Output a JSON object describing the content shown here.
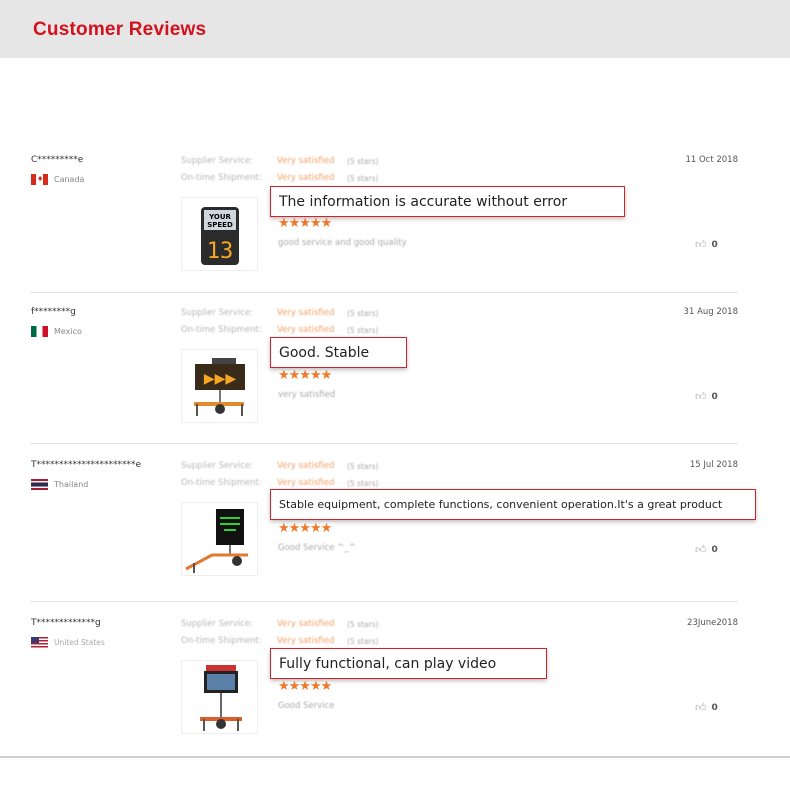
{
  "header": {
    "title": "Customer Reviews"
  },
  "labels": {
    "supplier": "Supplier Service:",
    "shipment": "On-time Shipment:"
  },
  "colors": {
    "accent": "#d2121f",
    "stars": "#f07a2a"
  },
  "reviews": [
    {
      "name": "C*********e",
      "country": "Canada",
      "flag": "canada-flag",
      "supplier": "Very satisfied",
      "supplier_stars": "(5 stars)",
      "shipment": "Very satisfied",
      "shipment_stars": "(5 stars)",
      "rating": 5,
      "stars": "★★★★★",
      "comment": "good service and good quality",
      "date": "11 Oct 2018",
      "likes": "0",
      "callout": "The information is accurate without error",
      "image": "speed-sign"
    },
    {
      "name": "f********g",
      "country": "Mexico",
      "flag": "mexico-flag",
      "supplier": "Very satisfied",
      "supplier_stars": "(5 stars)",
      "shipment": "Very satisfied",
      "shipment_stars": "(5 stars)",
      "rating": 5,
      "stars": "★★★★★",
      "comment": "very satisfied",
      "date": "31 Aug 2018",
      "likes": "0",
      "callout": "Good. Stable",
      "image": "arrow-board-trailer"
    },
    {
      "name": "T**********************e",
      "country": "Thailand",
      "flag": "thailand-flag",
      "supplier": "Very satisfied",
      "supplier_stars": "(5 stars)",
      "shipment": "Very satisfied",
      "shipment_stars": "(5 stars)",
      "rating": 5,
      "stars": "★★★★★",
      "comment": "Good Service ^_^",
      "date": "15 Jul 2018",
      "likes": "0",
      "callout": "Stable equipment, complete functions, convenient operation.It's a great product",
      "image": "message-sign-trailer"
    },
    {
      "name": "T*************g",
      "country": "United States",
      "flag": "usa-flag",
      "supplier": "Very satisfied",
      "supplier_stars": "(5 stars)",
      "shipment": "Very satisfied",
      "shipment_stars": "(5 stars)",
      "rating": 5,
      "stars": "★★★★★",
      "comment": "Good Service",
      "date": "23June2018",
      "likes": "0",
      "callout": "Fully functional, can play video",
      "image": "video-screen-trailer"
    }
  ]
}
